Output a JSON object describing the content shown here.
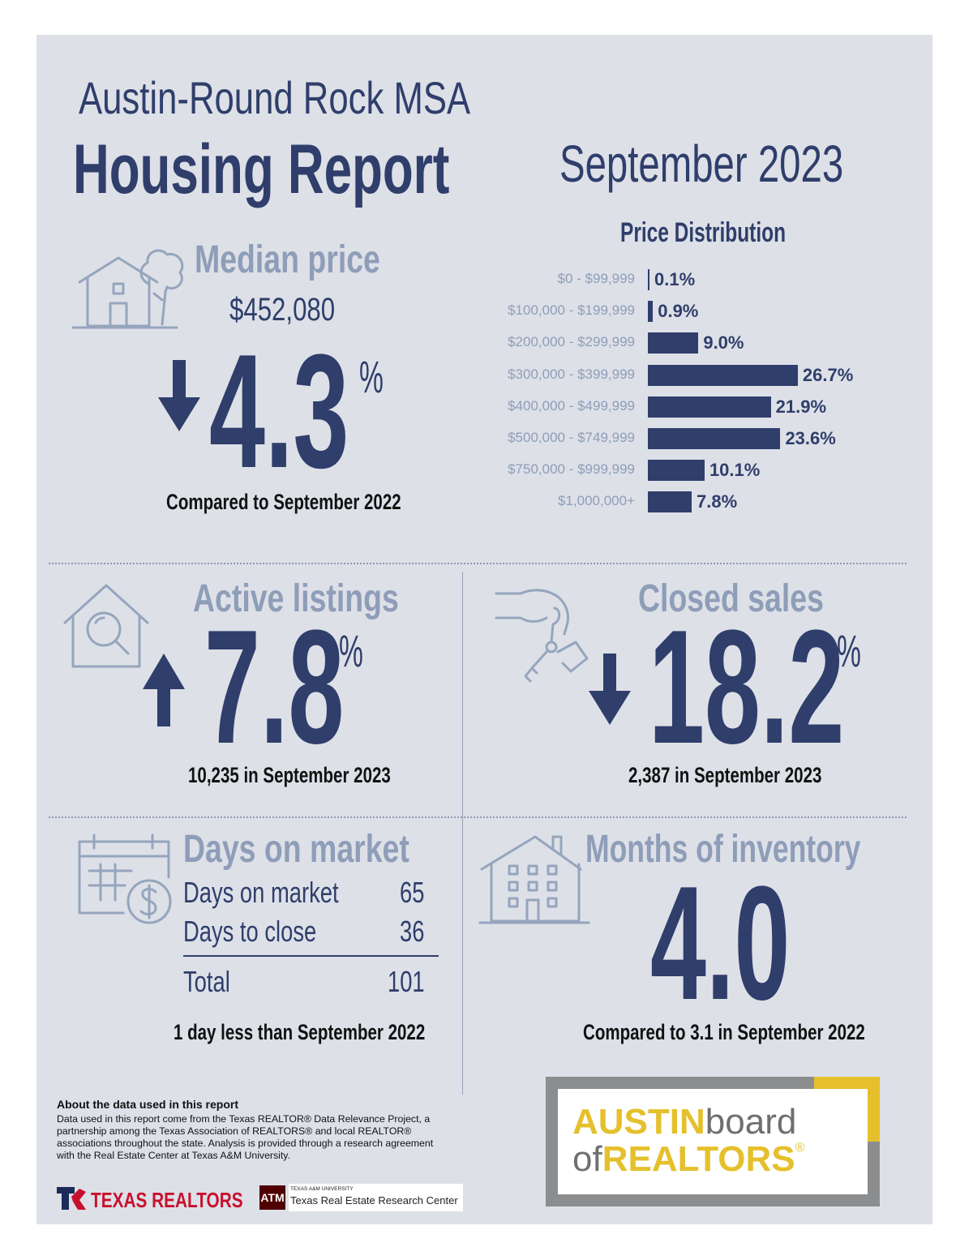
{
  "header": {
    "region": "Austin-Round Rock MSA",
    "title": "Housing Report",
    "period": "September 2023"
  },
  "median_price": {
    "heading": "Median price",
    "price": "$452,080",
    "change": "4.3",
    "percent_sign": "%",
    "direction": "down",
    "caption": "Compared to September 2022"
  },
  "chart_data": {
    "type": "bar",
    "orientation": "horizontal",
    "title": "Price Distribution",
    "categories": [
      "$0 - $99,999",
      "$100,000 - $199,999",
      "$200,000 - $299,999",
      "$300,000 - $399,999",
      "$400,000 - $499,999",
      "$500,000 - $749,999",
      "$750,000 - $999,999",
      "$1,000,000+"
    ],
    "values": [
      0.1,
      0.9,
      9.0,
      26.7,
      21.9,
      23.6,
      10.1,
      7.8
    ],
    "value_labels": [
      "0.1%",
      "0.9%",
      "9.0%",
      "26.7%",
      "21.9%",
      "23.6%",
      "10.1%",
      "7.8%"
    ],
    "unit": "%",
    "xlim": [
      0,
      27
    ]
  },
  "active_listings": {
    "heading": "Active listings",
    "change": "7.8",
    "percent_sign": "%",
    "direction": "up",
    "caption": "10,235 in September 2023"
  },
  "closed_sales": {
    "heading": "Closed sales",
    "change": "18.2",
    "percent_sign": "%",
    "direction": "down",
    "caption": "2,387 in September 2023"
  },
  "days_on_market": {
    "heading": "Days on market",
    "rows": [
      {
        "label": "Days on market",
        "value": "65"
      },
      {
        "label": "Days to close",
        "value": "36"
      }
    ],
    "total_label": "Total",
    "total_value": "101",
    "caption": "1 day less than September 2022"
  },
  "months_inventory": {
    "heading": "Months of inventory",
    "value": "4.0",
    "caption": "Compared to 3.1 in September 2022"
  },
  "about": {
    "heading": "About the data used in this report",
    "body": "Data used in this report come from the Texas REALTOR® Data Relevance Project, a partnership among the Texas Association of REALTORS® and local REALTOR® associations throughout the state. Analysis is provided through a research agreement with the Real Estate Center at Texas A&M University."
  },
  "logos": {
    "texas_realtors": "TEXAS REALTORS",
    "tamu_small": "TEXAS A&M UNIVERSITY",
    "tamu_name": "Texas Real Estate Research Center",
    "abor_line1a": "AUSTIN",
    "abor_line1b": "board",
    "abor_line2a": "of",
    "abor_line2b": "REALTORS",
    "abor_reg": "®"
  },
  "colors": {
    "navy": "#2f3e6b",
    "light_blue": "#8e9db8",
    "panel": "#dde0e7",
    "gold": "#e5c02c"
  },
  "icons": [
    "house-tree-icon",
    "house-search-icon",
    "hand-keys-icon",
    "calendar-dollar-icon",
    "apartment-building-icon",
    "down-arrow-icon",
    "up-arrow-icon"
  ]
}
